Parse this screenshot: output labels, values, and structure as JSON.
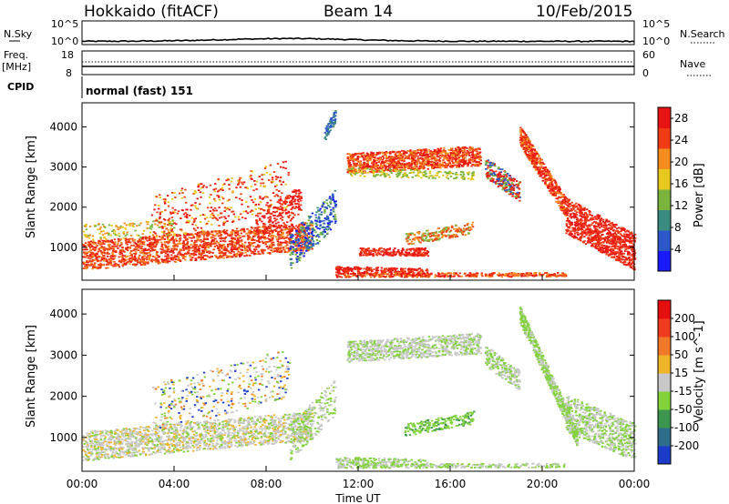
{
  "header": {
    "title": "Hokkaido (fitACF)",
    "beam": "Beam 14",
    "date": "10/Feb/2015"
  },
  "strip_labels": {
    "nsky": "N.Sky",
    "nsky_tick_top": "10^5",
    "nsky_tick_bottom": "10^0",
    "nsearch": "N.Search",
    "nsearch_tick_top": "10^5",
    "nsearch_tick_bottom": "10^0",
    "freq": "Freq.",
    "freq_unit": "[MHz]",
    "freq_tick_top": "18",
    "freq_tick_bottom": "8",
    "nave": "Nave",
    "nave_tick_top": "60",
    "nave_tick_bottom": "0",
    "cpid": "CPID",
    "cpid_value": "normal (fast) 151"
  },
  "chart_data": [
    {
      "type": "heatmap",
      "title": "",
      "xlabel": "Time UT",
      "ylabel": "Slant Range [km]",
      "xlim": [
        "00:00",
        "24:00"
      ],
      "ylim": [
        180,
        4600
      ],
      "x_ticks": [
        "00:00",
        "04:00",
        "08:00",
        "12:00",
        "16:00",
        "20:00",
        "00:00"
      ],
      "y_ticks": [
        1000,
        2000,
        3000,
        4000
      ],
      "colorbar": {
        "label": "Power [dB]",
        "ticks": [
          4,
          8,
          12,
          16,
          20,
          24,
          28
        ],
        "range": [
          0,
          30
        ],
        "colors": [
          "#1a1aff",
          "#2c57c9",
          "#3b8c80",
          "#7ab43c",
          "#e8c81e",
          "#f58c1e",
          "#f03c14",
          "#e81414"
        ]
      },
      "features": [
        {
          "name": "near-range echoes",
          "t_start_h": 0,
          "t_end_h": 10,
          "range_km": [
            500,
            1400
          ],
          "level_db": 28
        },
        {
          "name": "daytime band",
          "t_start_h": 11.5,
          "t_end_h": 17.5,
          "range_km": [
            2900,
            3500
          ],
          "level_db": 26
        },
        {
          "name": "evening band",
          "t_start_h": 18,
          "t_end_h": 24,
          "range_km": [
            600,
            3700
          ],
          "level_db": 26
        }
      ]
    },
    {
      "type": "heatmap",
      "title": "",
      "xlabel": "Time UT",
      "ylabel": "Slant Range [km]",
      "xlim": [
        "00:00",
        "24:00"
      ],
      "ylim": [
        180,
        4600
      ],
      "x_ticks": [
        "00:00",
        "04:00",
        "08:00",
        "12:00",
        "16:00",
        "20:00",
        "00:00"
      ],
      "y_ticks": [
        1000,
        2000,
        3000,
        4000
      ],
      "colorbar": {
        "label": "Velocity [m s^-1]",
        "ticks": [
          200,
          100,
          50,
          15,
          -15,
          -50,
          -100,
          -200
        ],
        "range": [
          -250,
          250
        ],
        "colors": [
          "#1a3cc8",
          "#2e6e8c",
          "#3c9650",
          "#82d23c",
          "#c8c8c8",
          "#f0b428",
          "#f07828",
          "#f03c1e",
          "#e60f0f"
        ]
      }
    }
  ]
}
